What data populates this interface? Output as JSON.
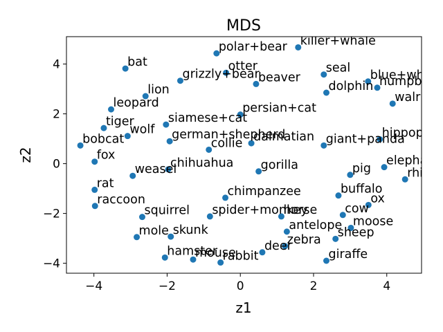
{
  "chart_data": {
    "type": "scatter",
    "title": "MDS",
    "xlabel": "z1",
    "ylabel": "z2",
    "xlim": [
      -4.75,
      4.95
    ],
    "ylim": [
      -4.4,
      5.1
    ],
    "xticks": [
      -4,
      -2,
      0,
      2,
      4
    ],
    "yticks": [
      -4,
      -2,
      0,
      2,
      4
    ],
    "grid": false,
    "marker_color": "#1f77b4",
    "points": [
      {
        "label": "killer+whale",
        "x": 1.58,
        "y": 4.67
      },
      {
        "label": "polar+bear",
        "x": -0.65,
        "y": 4.43
      },
      {
        "label": "bat",
        "x": -3.14,
        "y": 3.82
      },
      {
        "label": "otter",
        "x": -0.39,
        "y": 3.65
      },
      {
        "label": "seal",
        "x": 2.28,
        "y": 3.58
      },
      {
        "label": "grizzly+bear",
        "x": -1.64,
        "y": 3.33
      },
      {
        "label": "beaver",
        "x": 0.43,
        "y": 3.2
      },
      {
        "label": "blue+whale",
        "x": 3.49,
        "y": 3.3
      },
      {
        "label": "humpback+whale",
        "x": 3.74,
        "y": 3.05
      },
      {
        "label": "dolphin",
        "x": 2.35,
        "y": 2.85
      },
      {
        "label": "lion",
        "x": -2.59,
        "y": 2.71
      },
      {
        "label": "walrus",
        "x": 4.16,
        "y": 2.41
      },
      {
        "label": "leopard",
        "x": -3.53,
        "y": 2.18
      },
      {
        "label": "persian+cat",
        "x": 0.0,
        "y": 1.97
      },
      {
        "label": "siamese+cat",
        "x": -2.03,
        "y": 1.57
      },
      {
        "label": "tiger",
        "x": -3.73,
        "y": 1.43
      },
      {
        "label": "wolf",
        "x": -3.08,
        "y": 1.11
      },
      {
        "label": "hippopotamus",
        "x": 3.81,
        "y": 0.98
      },
      {
        "label": "german+shepherd",
        "x": -1.93,
        "y": 0.9
      },
      {
        "label": "dalmatian",
        "x": 0.3,
        "y": 0.82
      },
      {
        "label": "giant+panda",
        "x": 2.28,
        "y": 0.73
      },
      {
        "label": "bobcat",
        "x": -4.37,
        "y": 0.73
      },
      {
        "label": "collie",
        "x": -0.86,
        "y": 0.56
      },
      {
        "label": "fox",
        "x": -3.98,
        "y": 0.08
      },
      {
        "label": "elephant",
        "x": 3.93,
        "y": -0.14
      },
      {
        "label": "chihuahua",
        "x": -1.97,
        "y": -0.23
      },
      {
        "label": "gorilla",
        "x": 0.5,
        "y": -0.31
      },
      {
        "label": "weasel",
        "x": -2.94,
        "y": -0.49
      },
      {
        "label": "pig",
        "x": 3.0,
        "y": -0.45
      },
      {
        "label": "rhinoceros",
        "x": 4.5,
        "y": -0.63
      },
      {
        "label": "rat",
        "x": -3.98,
        "y": -1.05
      },
      {
        "label": "buffalo",
        "x": 2.68,
        "y": -1.28
      },
      {
        "label": "chimpanzee",
        "x": -0.41,
        "y": -1.37
      },
      {
        "label": "ox",
        "x": 3.5,
        "y": -1.66
      },
      {
        "label": "raccoon",
        "x": -3.97,
        "y": -1.7
      },
      {
        "label": "cow",
        "x": 2.8,
        "y": -2.06
      },
      {
        "label": "squirrel",
        "x": -2.68,
        "y": -2.14
      },
      {
        "label": "spider+monkey",
        "x": -0.83,
        "y": -2.12
      },
      {
        "label": "horse",
        "x": 1.12,
        "y": -2.12
      },
      {
        "label": "moose",
        "x": 3.02,
        "y": -2.58
      },
      {
        "label": "antelope",
        "x": 1.27,
        "y": -2.73
      },
      {
        "label": "mole",
        "x": -2.83,
        "y": -2.95
      },
      {
        "label": "skunk",
        "x": -1.9,
        "y": -2.93
      },
      {
        "label": "sheep",
        "x": 2.6,
        "y": -3.02
      },
      {
        "label": "zebra",
        "x": 1.22,
        "y": -3.31
      },
      {
        "label": "deer",
        "x": 0.6,
        "y": -3.56
      },
      {
        "label": "hamster",
        "x": -2.06,
        "y": -3.77
      },
      {
        "label": "mouse",
        "x": -1.29,
        "y": -3.85
      },
      {
        "label": "rabbit",
        "x": -0.54,
        "y": -3.97
      },
      {
        "label": "giraffe",
        "x": 2.35,
        "y": -3.9
      }
    ]
  }
}
